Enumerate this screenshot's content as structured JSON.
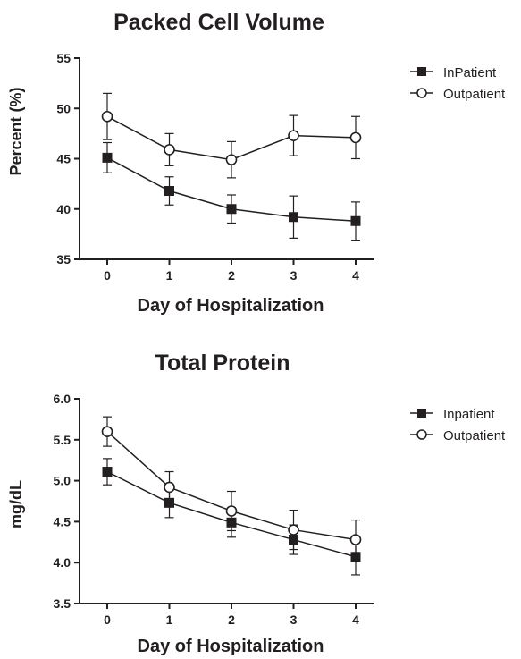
{
  "chart_data": [
    {
      "type": "line",
      "title": "Packed Cell Volume",
      "xlabel": "Day of Hospitalization",
      "ylabel": "Percent (%)",
      "x": [
        0,
        1,
        2,
        3,
        4
      ],
      "xticks": [
        "0",
        "1",
        "2",
        "3",
        "4"
      ],
      "ylim": [
        35,
        55
      ],
      "yticks": [
        "35",
        "40",
        "45",
        "50",
        "55"
      ],
      "grid": false,
      "legend_position": "right",
      "series": [
        {
          "name": "InPatient",
          "marker": "filled-square",
          "values": [
            45.1,
            41.8,
            40.0,
            39.2,
            38.8
          ],
          "error": [
            1.5,
            1.4,
            1.4,
            2.1,
            1.9
          ]
        },
        {
          "name": "Outpatient",
          "marker": "open-circle",
          "values": [
            49.2,
            45.9,
            44.9,
            47.3,
            47.1
          ],
          "error": [
            2.3,
            1.6,
            1.8,
            2.0,
            2.1
          ]
        }
      ]
    },
    {
      "type": "line",
      "title": "Total Protein",
      "xlabel": "Day of Hospitalization",
      "ylabel": "mg/dL",
      "x": [
        0,
        1,
        2,
        3,
        4
      ],
      "xticks": [
        "0",
        "1",
        "2",
        "3",
        "4"
      ],
      "ylim": [
        3.5,
        6.0
      ],
      "yticks": [
        "3.5",
        "4.0",
        "4.5",
        "5.0",
        "5.5",
        "6.0"
      ],
      "grid": false,
      "legend_position": "right",
      "series": [
        {
          "name": "Inpatient",
          "marker": "filled-square",
          "values": [
            5.11,
            4.73,
            4.49,
            4.28,
            4.07
          ],
          "error": [
            0.16,
            0.18,
            0.18,
            0.18,
            0.22
          ]
        },
        {
          "name": "Outpatient",
          "marker": "open-circle",
          "values": [
            5.6,
            4.92,
            4.63,
            4.4,
            4.28
          ],
          "error": [
            0.18,
            0.19,
            0.24,
            0.24,
            0.24
          ]
        }
      ]
    }
  ]
}
